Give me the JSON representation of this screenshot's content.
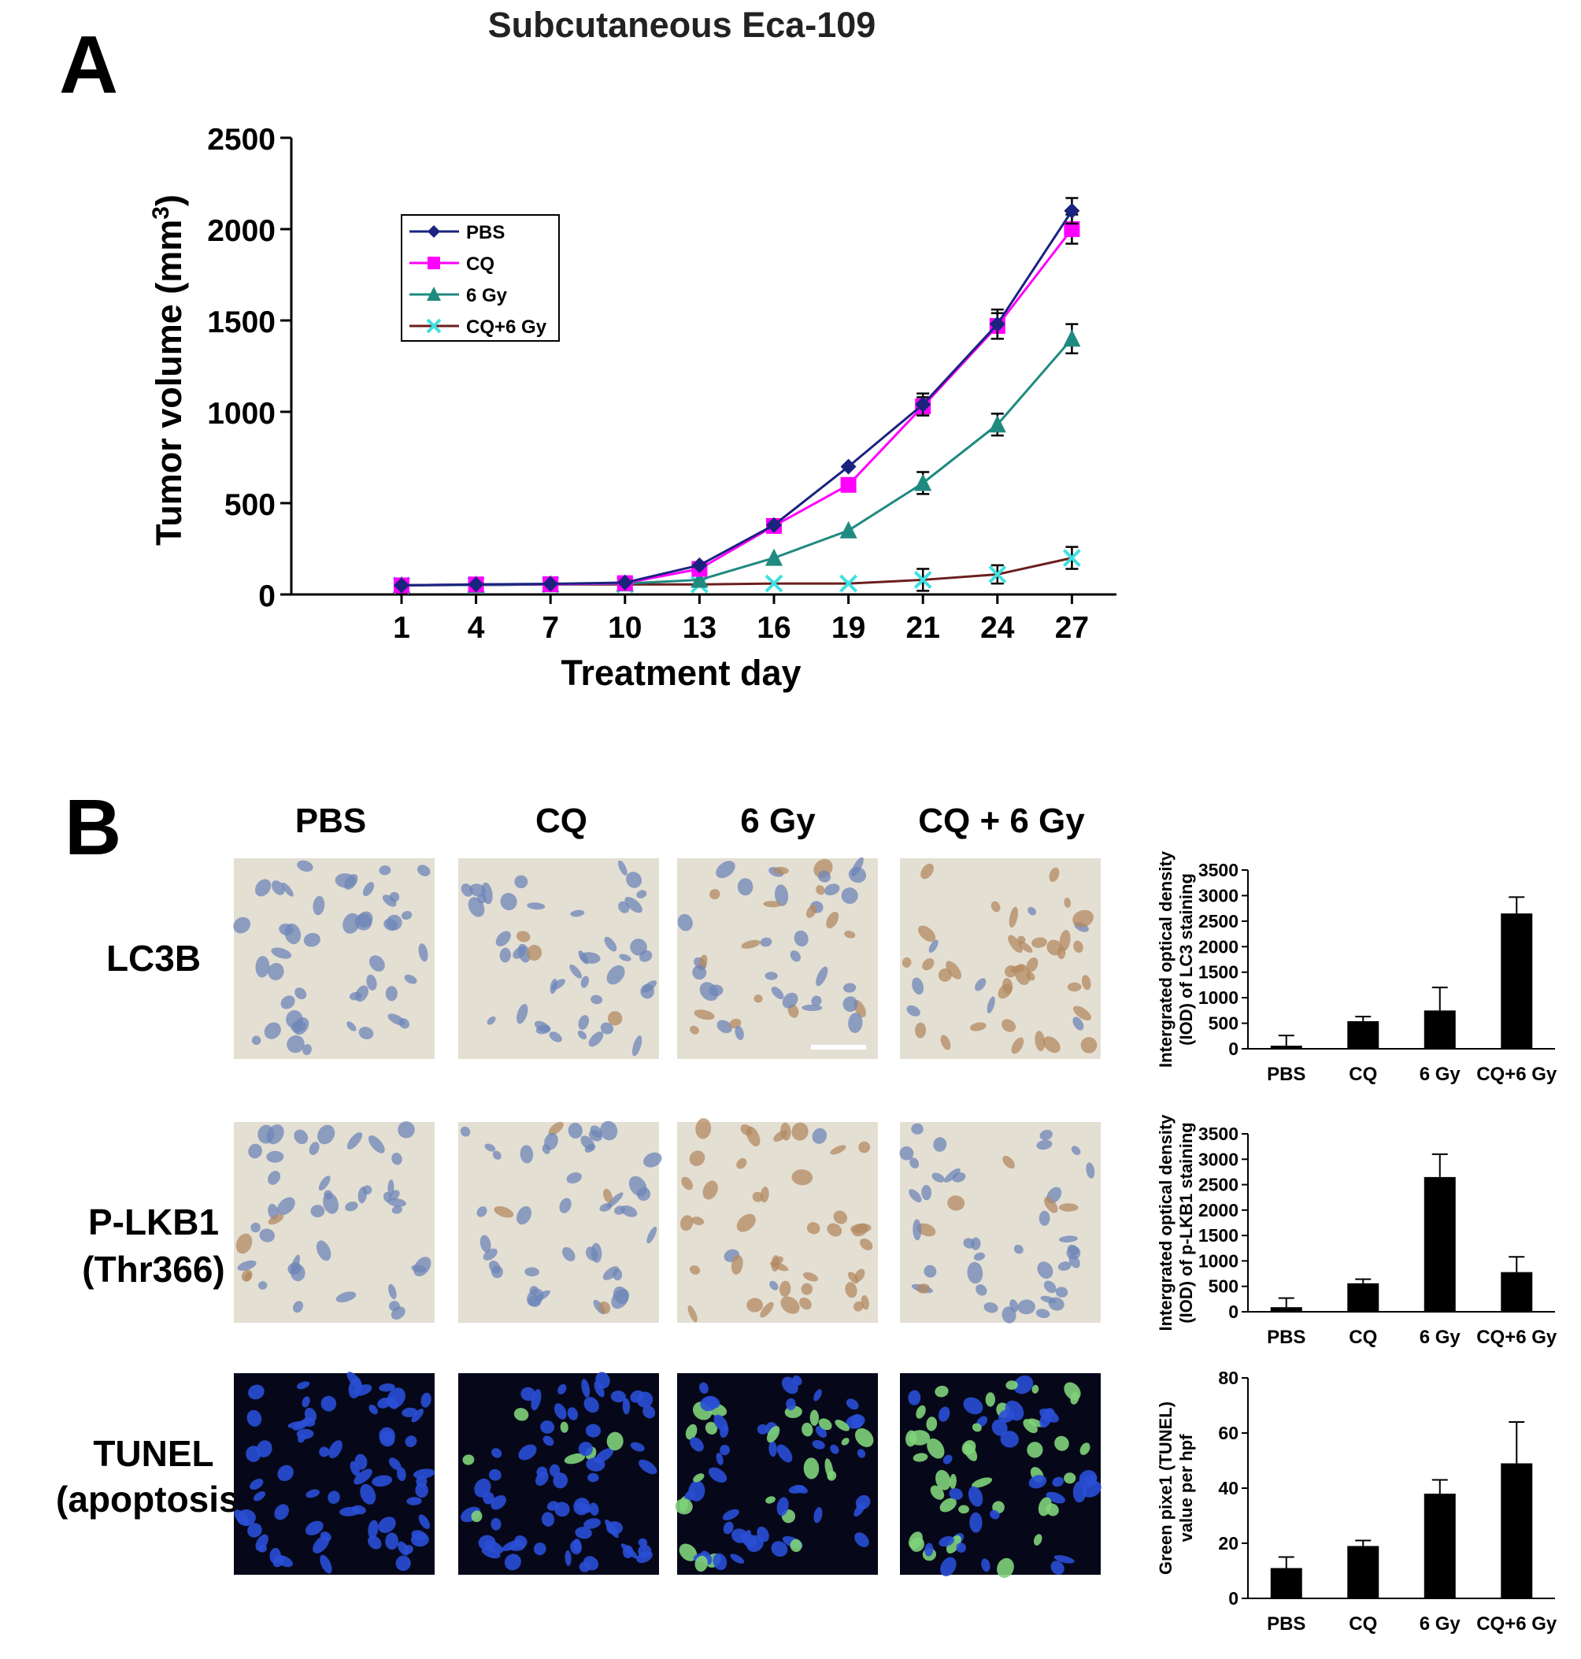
{
  "panel_a": {
    "letter": "A",
    "title": "Subcutaneous Eca-109",
    "ylabel_main": "Tumor volume (mm",
    "ylabel_sup": "3",
    "ylabel_close": ")"
  },
  "panel_b": {
    "letter": "B",
    "column_headers": [
      "PBS",
      "CQ",
      "6 Gy",
      "CQ + 6 Gy"
    ],
    "row_labels": [
      {
        "lines": [
          "LC3B"
        ]
      },
      {
        "lines": [
          "P-LKB1",
          "(Thr366)"
        ]
      },
      {
        "lines": [
          "TUNEL",
          "(apoptosis)"
        ]
      }
    ],
    "micro_colors": {
      "ihc_background": "#e4dfd3",
      "ihc_nucleus_blue": "#6d86b8",
      "ihc_brown": "#b38a62",
      "tunel_background": "#06081a",
      "tunel_nucleus_blue": "#2a4fd6",
      "tunel_green": "#7fd37a"
    }
  },
  "chart_data": [
    {
      "type": "line",
      "title": "Subcutaneous Eca-109",
      "xlabel": "Treatment day",
      "ylabel": "Tumor volume (mm3)",
      "x": [
        1,
        4,
        7,
        10,
        13,
        16,
        19,
        21,
        24,
        27
      ],
      "ylim": [
        0,
        2500
      ],
      "yticks": [
        0,
        500,
        1000,
        1500,
        2000,
        2500
      ],
      "legend_position": "top-left",
      "series": [
        {
          "name": "PBS",
          "color": "#1a237e",
          "marker": "diamond",
          "values": [
            50,
            55,
            58,
            65,
            160,
            380,
            700,
            1040,
            1480,
            2100
          ],
          "errors": [
            0,
            0,
            0,
            0,
            0,
            0,
            0,
            60,
            80,
            70
          ]
        },
        {
          "name": "CQ",
          "color": "#ff00ff",
          "marker": "square",
          "values": [
            50,
            55,
            56,
            62,
            140,
            375,
            600,
            1030,
            1470,
            2000
          ],
          "errors": [
            0,
            0,
            0,
            0,
            0,
            0,
            0,
            50,
            70,
            80
          ]
        },
        {
          "name": "6 Gy",
          "color": "#1f8a80",
          "marker": "triangle",
          "values": [
            50,
            52,
            55,
            60,
            80,
            200,
            350,
            610,
            930,
            1400
          ],
          "errors": [
            0,
            0,
            0,
            0,
            0,
            0,
            0,
            60,
            60,
            80
          ]
        },
        {
          "name": "CQ+6 Gy",
          "color": "#6b1e1e",
          "marker_color": "#40e0e0",
          "marker": "x",
          "values": [
            50,
            52,
            55,
            55,
            55,
            60,
            60,
            80,
            110,
            200
          ],
          "errors": [
            0,
            0,
            0,
            0,
            0,
            0,
            0,
            60,
            50,
            60
          ]
        }
      ]
    },
    {
      "type": "bar",
      "ylabel_lines": [
        "Intergrated optical density",
        "(IOD) of LC3 staining"
      ],
      "categories": [
        "PBS",
        "CQ",
        "6 Gy",
        "CQ+6 Gy"
      ],
      "values": [
        60,
        540,
        750,
        2650
      ],
      "errors": [
        200,
        90,
        450,
        320
      ],
      "ylim": [
        0,
        3500
      ],
      "yticks": [
        0,
        500,
        1000,
        1500,
        2000,
        2500,
        3000,
        3500
      ]
    },
    {
      "type": "bar",
      "ylabel_lines": [
        "Intergrated optical density",
        "(IOD) of p-LKB1 staining"
      ],
      "categories": [
        "PBS",
        "CQ",
        "6 Gy",
        "CQ+6 Gy"
      ],
      "values": [
        90,
        560,
        2650,
        780
      ],
      "errors": [
        180,
        80,
        450,
        300
      ],
      "ylim": [
        0,
        3500
      ],
      "yticks": [
        0,
        500,
        1000,
        1500,
        2000,
        2500,
        3000,
        3500
      ]
    },
    {
      "type": "bar",
      "ylabel_lines": [
        "Green pixe1 (TUNEL)",
        "value per hpf"
      ],
      "categories": [
        "PBS",
        "CQ",
        "6 Gy",
        "CQ+6 Gy"
      ],
      "values": [
        11,
        19,
        38,
        49
      ],
      "errors": [
        4,
        2,
        5,
        15
      ],
      "ylim": [
        0,
        80
      ],
      "yticks": [
        0,
        20,
        40,
        60,
        80
      ]
    }
  ]
}
